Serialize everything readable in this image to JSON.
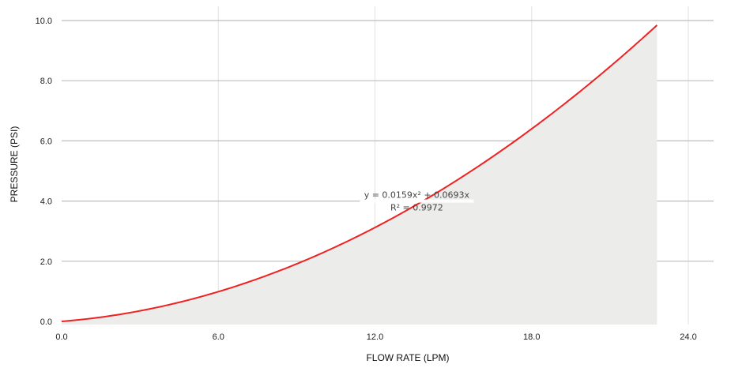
{
  "chart_data": {
    "type": "line",
    "xlabel": "FLOW RATE (LPM)",
    "ylabel": "PRESSURE (PSI)",
    "xlim": [
      0,
      25.8
    ],
    "ylim": [
      0,
      10.5
    ],
    "x_ticks": [
      "0.0",
      "6.0",
      "12.0",
      "18.0",
      "24.0"
    ],
    "x_tick_values": [
      0,
      6,
      12,
      18,
      24
    ],
    "y_ticks": [
      "0.0",
      "2.0",
      "4.0",
      "6.0",
      "8.0",
      "10.0"
    ],
    "y_tick_values": [
      0,
      2,
      4,
      6,
      8,
      10
    ],
    "grid": true,
    "series": [
      {
        "color": "#ee2222",
        "fill": "#ececea",
        "equation": {
          "a": 0.0159,
          "b": 0.0693
        },
        "x_range": [
          0,
          22.8
        ]
      }
    ],
    "annotation": {
      "lines": [
        "y = 0.0159x² + 0.0693x",
        "R² = 0.9972"
      ],
      "x": 13.6,
      "y": 4.0
    }
  }
}
